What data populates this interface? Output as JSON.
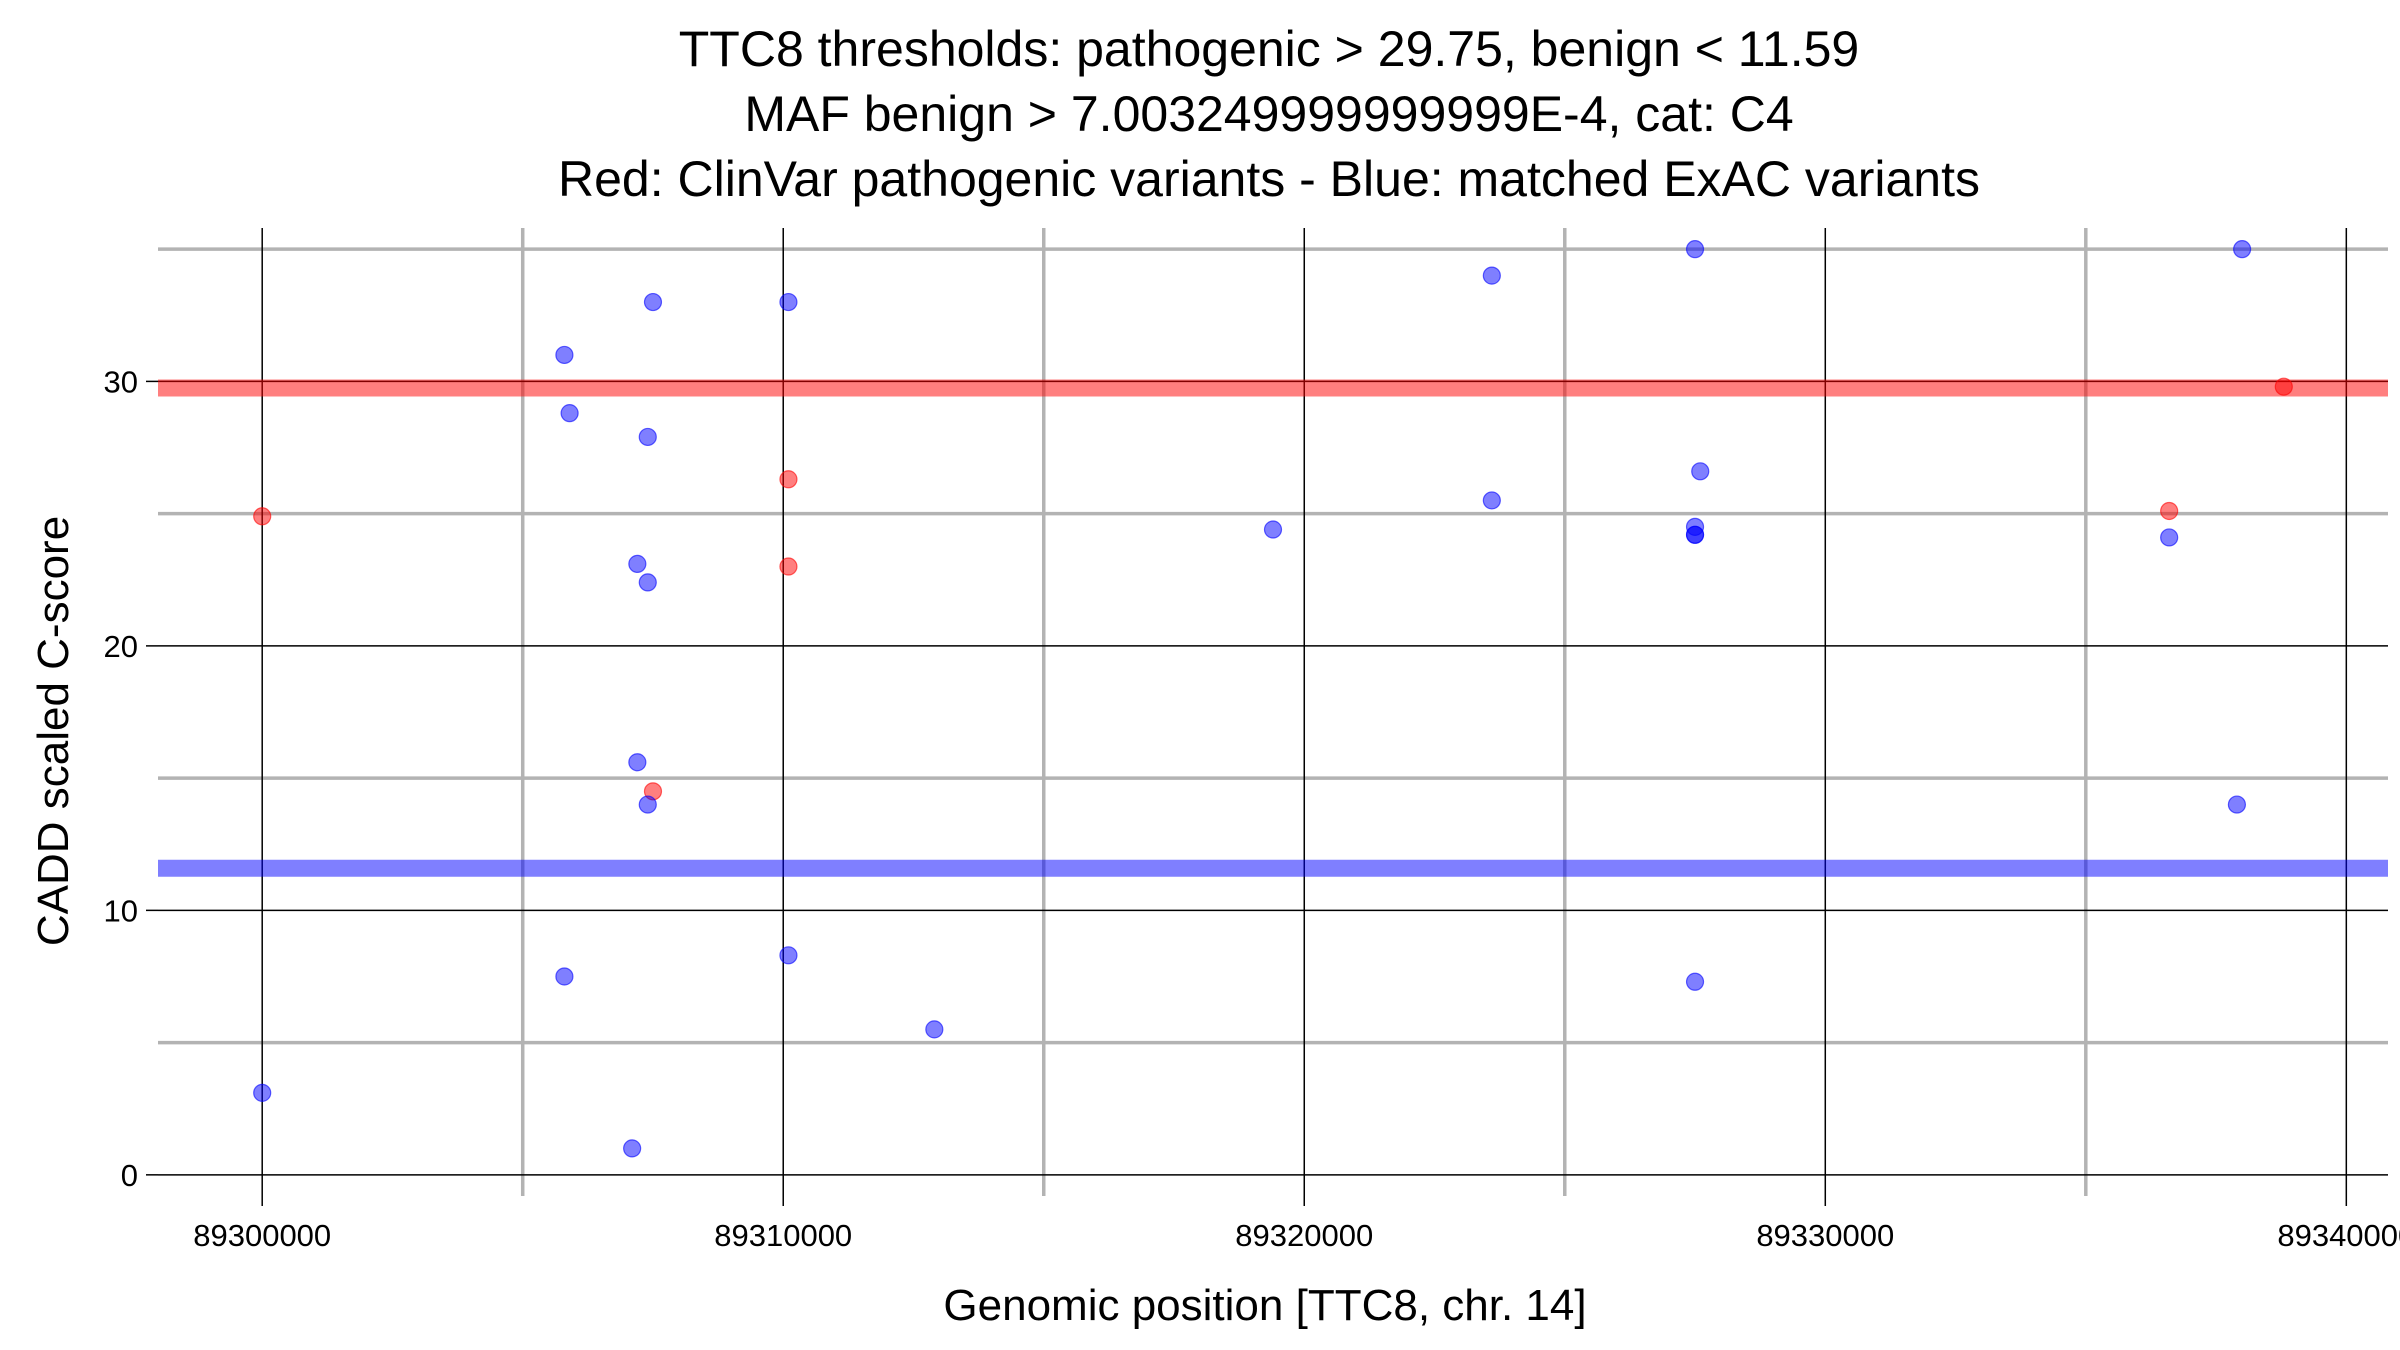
{
  "chart_data": {
    "type": "scatter",
    "title_lines": [
      "TTC8 thresholds: pathogenic > 29.75, benign < 11.59",
      "MAF benign > 7.003249999999999E-4, cat: C4",
      "Red: ClinVar pathogenic variants - Blue: matched ExAC variants"
    ],
    "xlabel": "Genomic position [TTC8, chr. 14]",
    "ylabel": "CADD scaled C-score",
    "xlim": [
      89298000,
      89340800
    ],
    "ylim": [
      -0.8,
      35.8
    ],
    "x_major_ticks": [
      89300000,
      89310000,
      89320000,
      89330000,
      89340000
    ],
    "x_tick_labels": [
      "89300000",
      "89310000",
      "89320000",
      "89330000",
      "89340000"
    ],
    "x_minor_ticks": [
      89305000,
      89315000,
      89325000,
      89335000
    ],
    "y_major_ticks": [
      0,
      10,
      20,
      30
    ],
    "y_tick_labels": [
      "0",
      "10",
      "20",
      "30"
    ],
    "y_minor_ticks": [
      5,
      15,
      25,
      35
    ],
    "grid": true,
    "thresholds": [
      {
        "name": "pathogenic",
        "value": 29.75,
        "color": "#ff0000"
      },
      {
        "name": "benign",
        "value": 11.59,
        "color": "#0000ff"
      }
    ],
    "series": [
      {
        "name": "ClinVar pathogenic variants",
        "color": "#ff0000",
        "points": [
          {
            "x": 89300000,
            "y": 24.9
          },
          {
            "x": 89307500,
            "y": 14.5
          },
          {
            "x": 89310100,
            "y": 26.3
          },
          {
            "x": 89310100,
            "y": 23.0
          },
          {
            "x": 89336600,
            "y": 25.1
          },
          {
            "x": 89338800,
            "y": 29.8
          }
        ]
      },
      {
        "name": "matched ExAC variants",
        "color": "#0000ff",
        "points": [
          {
            "x": 89300000,
            "y": 3.1
          },
          {
            "x": 89305800,
            "y": 31.0
          },
          {
            "x": 89305800,
            "y": 7.5
          },
          {
            "x": 89305900,
            "y": 28.8
          },
          {
            "x": 89307100,
            "y": 1.0
          },
          {
            "x": 89307200,
            "y": 23.1
          },
          {
            "x": 89307200,
            "y": 15.6
          },
          {
            "x": 89307400,
            "y": 27.9
          },
          {
            "x": 89307400,
            "y": 22.4
          },
          {
            "x": 89307400,
            "y": 14.0
          },
          {
            "x": 89307500,
            "y": 33.0
          },
          {
            "x": 89310100,
            "y": 33.0
          },
          {
            "x": 89310100,
            "y": 8.3
          },
          {
            "x": 89312900,
            "y": 5.5
          },
          {
            "x": 89319400,
            "y": 24.4
          },
          {
            "x": 89323600,
            "y": 34.0
          },
          {
            "x": 89323600,
            "y": 25.5
          },
          {
            "x": 89327500,
            "y": 35.0
          },
          {
            "x": 89327600,
            "y": 26.6
          },
          {
            "x": 89327500,
            "y": 24.5
          },
          {
            "x": 89327500,
            "y": 24.2
          },
          {
            "x": 89327500,
            "y": 24.2
          },
          {
            "x": 89327500,
            "y": 7.3
          },
          {
            "x": 89336600,
            "y": 24.1
          },
          {
            "x": 89337900,
            "y": 14.0
          },
          {
            "x": 89338000,
            "y": 35.0
          }
        ]
      }
    ]
  }
}
